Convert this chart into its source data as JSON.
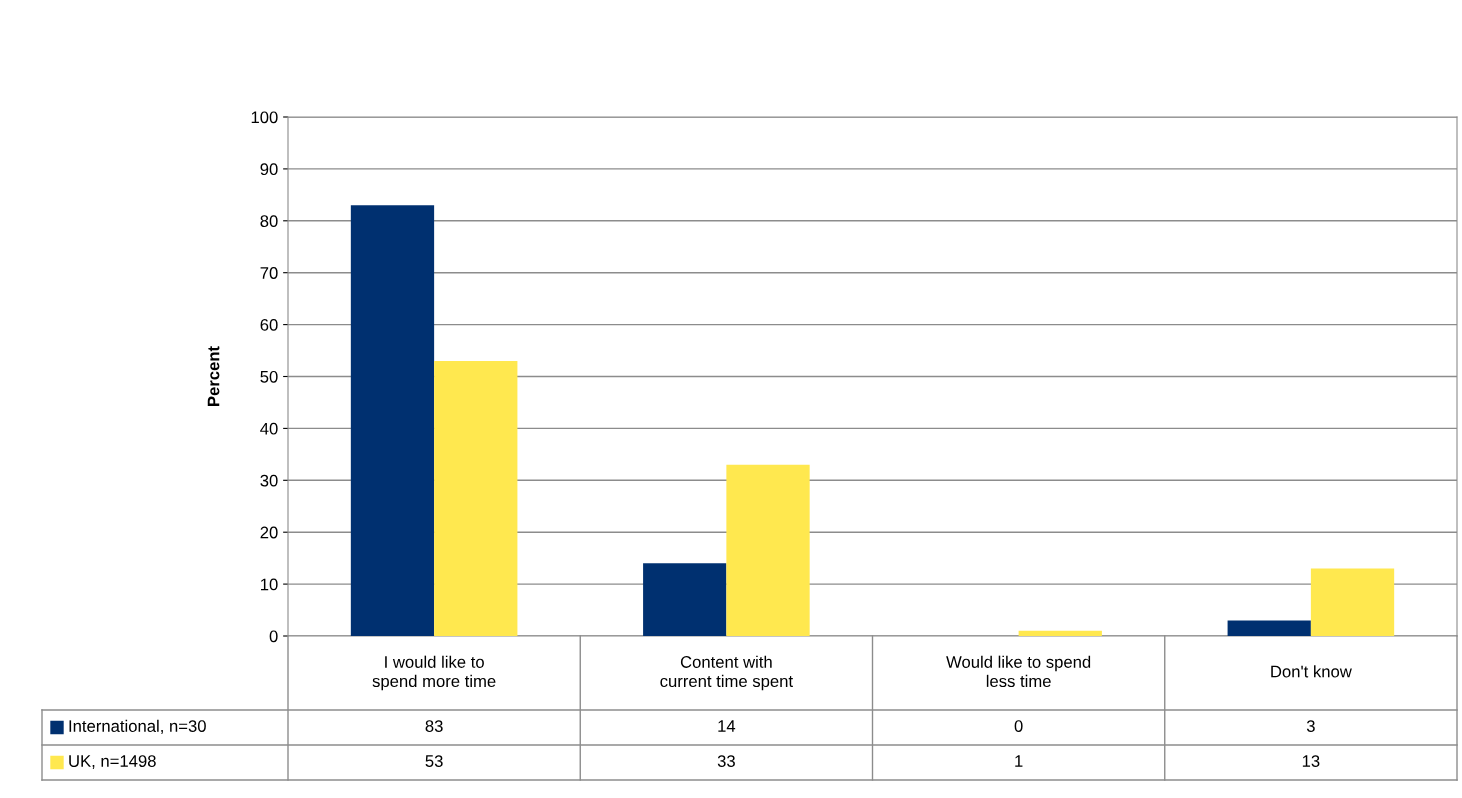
{
  "chart_data": {
    "type": "bar",
    "ylabel": "Percent",
    "categories": [
      "I would like to spend more time",
      "Content with current time spent",
      "Would like to spend less time",
      "Don't know"
    ],
    "series": [
      {
        "name": "International, n=30",
        "color": "#003070",
        "values": [
          83,
          14,
          0,
          3
        ]
      },
      {
        "name": "UK, n=1498",
        "color": "#ffe84f",
        "values": [
          53,
          33,
          1,
          13
        ]
      }
    ],
    "ylim": [
      0,
      100
    ],
    "yticks": [
      0,
      10,
      20,
      30,
      40,
      50,
      60,
      70,
      80,
      90,
      100
    ],
    "grid": "y",
    "legend": "bottom",
    "data_labels": true
  }
}
